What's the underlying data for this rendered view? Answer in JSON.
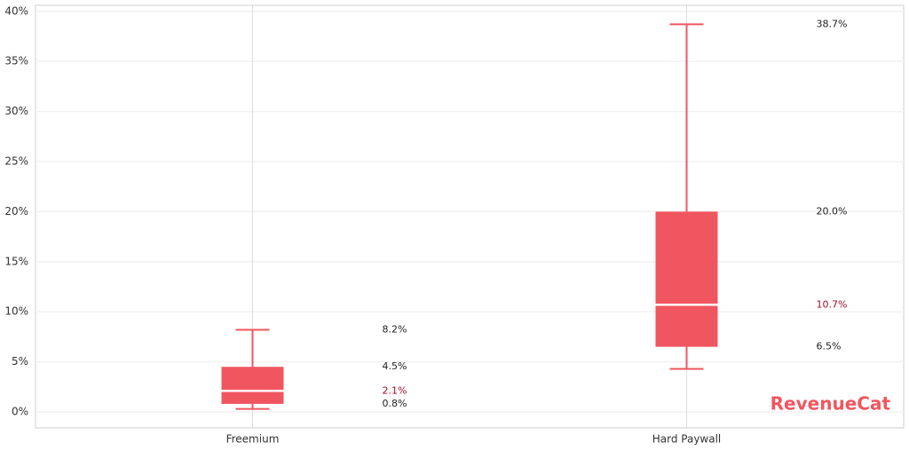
{
  "chart_data": {
    "type": "box",
    "categories": [
      "Freemium",
      "Hard Paywall"
    ],
    "whishi": {
      "values": [
        8.2,
        38.7
      ],
      "value_labels": [
        "8.2%",
        "38.7%"
      ]
    },
    "q3": {
      "values": [
        4.5,
        20.0
      ],
      "value_labels": [
        "4.5%",
        "20.0%"
      ]
    },
    "med": {
      "values": [
        2.1,
        10.7
      ],
      "value_labels": [
        "2.1%",
        "10.7%"
      ]
    },
    "q1": {
      "values": [
        0.8,
        6.5
      ],
      "value_labels": [
        "0.8%",
        "6.5%"
      ]
    },
    "whislo": {
      "values": [
        0.3,
        4.3
      ]
    },
    "color": "#f0565f",
    "median_color": "#ffffff",
    "median_label_color": "#a0102a",
    "ylim": [
      -1.6,
      40.6
    ],
    "yticks": [
      {
        "value": 0,
        "label": "0%"
      },
      {
        "value": 5,
        "label": "5%"
      },
      {
        "value": 10,
        "label": "10%"
      },
      {
        "value": 15,
        "label": "15%"
      },
      {
        "value": 20,
        "label": "20%"
      },
      {
        "value": 25,
        "label": "25%"
      },
      {
        "value": 30,
        "label": "30%"
      },
      {
        "value": 35,
        "label": "35%"
      },
      {
        "value": 40,
        "label": "40%"
      }
    ],
    "grid": true,
    "watermark": "RevenueCat"
  }
}
